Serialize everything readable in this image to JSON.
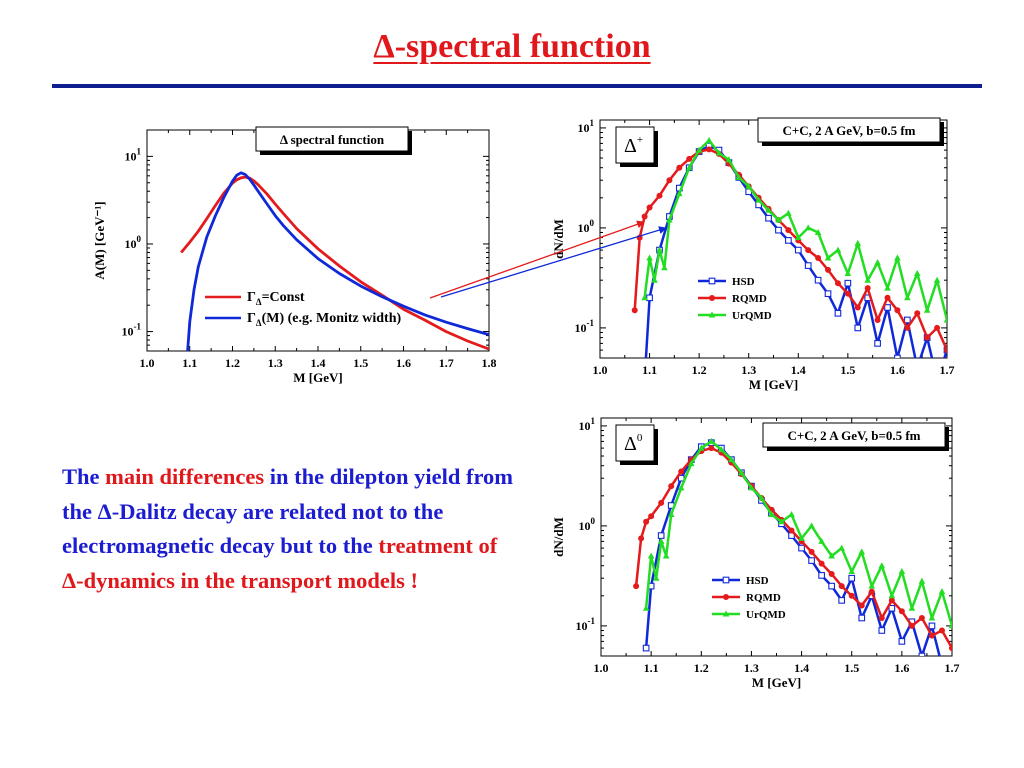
{
  "slide": {
    "title": "Δ-spectral function"
  },
  "text": {
    "p1": "The ",
    "p2": "main differences",
    "p3": " in the dilepton yield from  the Δ-Dalitz decay are related not to the electromagnetic decay but to the ",
    "p4": "treatment of Δ-dynamics in the transport models !"
  },
  "colors": {
    "title": "#e0171b",
    "rule": "#0f1f8f",
    "body": "#1c1cd0",
    "highlight": "#e0171b",
    "hsd": "#1029d8",
    "rqmd": "#e41a1c",
    "urqmd": "#22dd22"
  },
  "chart_data": [
    {
      "type": "line",
      "title": "Δ spectral function",
      "xlabel": "M [GeV]",
      "ylabel": "A(M) [GeV⁻¹]",
      "xlim": [
        1.0,
        1.8
      ],
      "ylim": [
        0.06,
        20
      ],
      "yscale": "log",
      "xticks": [
        "1.0",
        "1.1",
        "1.2",
        "1.3",
        "1.4",
        "1.5",
        "1.6",
        "1.7",
        "1.8"
      ],
      "yticks": [
        {
          "base": "10",
          "exp": "1",
          "value": 10
        },
        {
          "base": "10",
          "exp": "0",
          "value": 1
        },
        {
          "base": "10",
          "exp": "-1",
          "value": 0.1
        }
      ],
      "legend_position": "bottom-center",
      "series": [
        {
          "name": "Γ_Δ=Const",
          "label_main": "Γ",
          "label_sub": "Δ",
          "label_rest": "=Const",
          "color": "red",
          "x": [
            1.08,
            1.1,
            1.12,
            1.14,
            1.16,
            1.18,
            1.2,
            1.21,
            1.22,
            1.23,
            1.24,
            1.25,
            1.26,
            1.28,
            1.3,
            1.32,
            1.35,
            1.4,
            1.45,
            1.5,
            1.55,
            1.6,
            1.65,
            1.7,
            1.75,
            1.8
          ],
          "y": [
            0.8,
            1.05,
            1.4,
            1.95,
            2.75,
            3.8,
            4.95,
            5.4,
            5.7,
            5.8,
            5.65,
            5.25,
            4.75,
            3.75,
            2.85,
            2.2,
            1.5,
            0.88,
            0.56,
            0.37,
            0.26,
            0.18,
            0.135,
            0.1,
            0.078,
            0.063
          ]
        },
        {
          "name": "Γ_Δ(M) (e.g. Monitz width)",
          "label_main": "Γ",
          "label_sub": "Δ",
          "label_rest": "(M) (e.g. Monitz width)",
          "color": "blue",
          "x": [
            1.088,
            1.095,
            1.1,
            1.11,
            1.12,
            1.14,
            1.16,
            1.18,
            1.2,
            1.21,
            1.22,
            1.23,
            1.24,
            1.25,
            1.26,
            1.28,
            1.3,
            1.32,
            1.35,
            1.4,
            1.45,
            1.5,
            1.55,
            1.6,
            1.65,
            1.7,
            1.75,
            1.8
          ],
          "y": [
            0.025,
            0.06,
            0.13,
            0.3,
            0.55,
            1.2,
            2.1,
            3.4,
            5.2,
            6.1,
            6.5,
            6.2,
            5.5,
            4.7,
            4.0,
            2.9,
            2.1,
            1.6,
            1.12,
            0.68,
            0.46,
            0.33,
            0.25,
            0.195,
            0.155,
            0.128,
            0.108,
            0.092
          ]
        }
      ]
    },
    {
      "type": "line",
      "title": "C+C, 2 A GeV, b=0.5 fm",
      "panel_label": {
        "base": "Δ",
        "sup": "+"
      },
      "xlabel": "M [GeV]",
      "ylabel": "dN/dM",
      "xlim": [
        1.0,
        1.7
      ],
      "ylim": [
        0.05,
        12
      ],
      "yscale": "log",
      "xticks": [
        "1.0",
        "1.1",
        "1.2",
        "1.3",
        "1.4",
        "1.5",
        "1.6",
        "1.7"
      ],
      "yticks": [
        {
          "base": "10",
          "exp": "1",
          "value": 10
        },
        {
          "base": "10",
          "exp": "0",
          "value": 1
        },
        {
          "base": "10",
          "exp": "-1",
          "value": 0.1
        }
      ],
      "legend_position": "center",
      "series": [
        {
          "name": "HSD",
          "color": "blue",
          "marker": "square",
          "x": [
            1.09,
            1.1,
            1.12,
            1.14,
            1.16,
            1.18,
            1.2,
            1.22,
            1.24,
            1.26,
            1.28,
            1.3,
            1.32,
            1.34,
            1.36,
            1.38,
            1.4,
            1.42,
            1.44,
            1.46,
            1.48,
            1.5,
            1.52,
            1.54,
            1.56,
            1.58,
            1.6,
            1.62,
            1.64,
            1.66,
            1.68,
            1.7
          ],
          "y": [
            0.03,
            0.2,
            0.6,
            1.3,
            2.5,
            4.0,
            5.8,
            6.6,
            6.0,
            4.5,
            3.2,
            2.3,
            1.7,
            1.25,
            0.95,
            0.75,
            0.6,
            0.42,
            0.3,
            0.22,
            0.14,
            0.28,
            0.1,
            0.2,
            0.07,
            0.16,
            0.05,
            0.12,
            0.04,
            0.08,
            0.03,
            0.06
          ]
        },
        {
          "name": "RQMD",
          "color": "red",
          "marker": "circle",
          "x": [
            1.07,
            1.08,
            1.09,
            1.1,
            1.12,
            1.14,
            1.16,
            1.18,
            1.2,
            1.22,
            1.24,
            1.26,
            1.28,
            1.3,
            1.32,
            1.34,
            1.36,
            1.38,
            1.4,
            1.42,
            1.44,
            1.46,
            1.48,
            1.5,
            1.52,
            1.54,
            1.56,
            1.58,
            1.6,
            1.62,
            1.64,
            1.66,
            1.68,
            1.7
          ],
          "y": [
            0.15,
            0.8,
            1.3,
            1.6,
            2.1,
            3.0,
            4.0,
            4.9,
            5.8,
            6.1,
            5.5,
            4.4,
            3.4,
            2.6,
            2.0,
            1.55,
            1.2,
            0.95,
            0.75,
            0.6,
            0.5,
            0.38,
            0.28,
            0.22,
            0.16,
            0.25,
            0.12,
            0.2,
            0.15,
            0.1,
            0.14,
            0.08,
            0.1,
            0.06
          ]
        },
        {
          "name": "UrQMD",
          "color": "green",
          "marker": "triangle",
          "x": [
            1.09,
            1.1,
            1.11,
            1.12,
            1.13,
            1.14,
            1.16,
            1.18,
            1.2,
            1.22,
            1.24,
            1.26,
            1.28,
            1.3,
            1.32,
            1.34,
            1.36,
            1.38,
            1.4,
            1.42,
            1.44,
            1.46,
            1.48,
            1.5,
            1.52,
            1.54,
            1.56,
            1.58,
            1.6,
            1.62,
            1.64,
            1.66,
            1.68,
            1.7
          ],
          "y": [
            0.2,
            0.5,
            0.3,
            0.6,
            0.4,
            1.2,
            2.2,
            4.0,
            6.0,
            7.5,
            5.6,
            4.8,
            3.2,
            2.6,
            1.9,
            1.5,
            1.2,
            1.4,
            0.8,
            1.0,
            0.9,
            0.5,
            0.6,
            0.35,
            0.7,
            0.3,
            0.45,
            0.25,
            0.5,
            0.2,
            0.35,
            0.15,
            0.3,
            0.12
          ]
        }
      ]
    },
    {
      "type": "line",
      "title": "C+C, 2 A GeV, b=0.5 fm",
      "panel_label": {
        "base": "Δ",
        "sup": "0"
      },
      "xlabel": "M [GeV]",
      "ylabel": "dN/dM",
      "xlim": [
        1.0,
        1.7
      ],
      "ylim": [
        0.05,
        12
      ],
      "yscale": "log",
      "xticks": [
        "1.0",
        "1.1",
        "1.2",
        "1.3",
        "1.4",
        "1.5",
        "1.6",
        "1.7"
      ],
      "yticks": [
        {
          "base": "10",
          "exp": "1",
          "value": 10
        },
        {
          "base": "10",
          "exp": "0",
          "value": 1
        },
        {
          "base": "10",
          "exp": "-1",
          "value": 0.1
        }
      ],
      "legend_position": "center",
      "series": [
        {
          "name": "HSD",
          "color": "blue",
          "marker": "square",
          "x": [
            1.09,
            1.1,
            1.12,
            1.14,
            1.16,
            1.18,
            1.2,
            1.22,
            1.24,
            1.26,
            1.28,
            1.3,
            1.32,
            1.34,
            1.36,
            1.38,
            1.4,
            1.42,
            1.44,
            1.46,
            1.48,
            1.5,
            1.52,
            1.54,
            1.56,
            1.58,
            1.6,
            1.62,
            1.64,
            1.66,
            1.68
          ],
          "y": [
            0.06,
            0.25,
            0.8,
            1.6,
            3.0,
            4.6,
            6.2,
            6.8,
            6.0,
            4.6,
            3.4,
            2.5,
            1.8,
            1.35,
            1.05,
            0.8,
            0.6,
            0.45,
            0.32,
            0.25,
            0.18,
            0.3,
            0.12,
            0.2,
            0.09,
            0.15,
            0.07,
            0.11,
            0.05,
            0.1,
            0.04
          ]
        },
        {
          "name": "RQMD",
          "color": "red",
          "marker": "circle",
          "x": [
            1.07,
            1.08,
            1.09,
            1.1,
            1.12,
            1.14,
            1.16,
            1.18,
            1.2,
            1.22,
            1.24,
            1.26,
            1.28,
            1.3,
            1.32,
            1.34,
            1.36,
            1.38,
            1.4,
            1.42,
            1.44,
            1.46,
            1.48,
            1.5,
            1.52,
            1.54,
            1.56,
            1.58,
            1.6,
            1.62,
            1.64,
            1.66,
            1.68,
            1.7
          ],
          "y": [
            0.25,
            0.75,
            1.1,
            1.25,
            1.7,
            2.5,
            3.5,
            4.6,
            5.6,
            6.0,
            5.4,
            4.3,
            3.3,
            2.5,
            1.9,
            1.45,
            1.15,
            0.9,
            0.7,
            0.55,
            0.42,
            0.33,
            0.25,
            0.2,
            0.16,
            0.22,
            0.12,
            0.18,
            0.14,
            0.1,
            0.12,
            0.08,
            0.09,
            0.06
          ]
        },
        {
          "name": "UrQMD",
          "color": "green",
          "marker": "triangle",
          "x": [
            1.09,
            1.1,
            1.11,
            1.12,
            1.13,
            1.14,
            1.16,
            1.18,
            1.2,
            1.22,
            1.24,
            1.26,
            1.28,
            1.3,
            1.32,
            1.34,
            1.36,
            1.38,
            1.4,
            1.42,
            1.44,
            1.46,
            1.48,
            1.5,
            1.52,
            1.54,
            1.56,
            1.58,
            1.6,
            1.62,
            1.64,
            1.66,
            1.68,
            1.7
          ],
          "y": [
            0.15,
            0.5,
            0.3,
            0.7,
            0.5,
            1.3,
            2.4,
            4.2,
            6.0,
            7.0,
            5.8,
            4.6,
            3.4,
            2.4,
            1.9,
            1.3,
            1.1,
            1.3,
            0.75,
            1.0,
            0.7,
            0.5,
            0.6,
            0.35,
            0.55,
            0.25,
            0.4,
            0.2,
            0.35,
            0.15,
            0.28,
            0.12,
            0.22,
            0.1
          ]
        }
      ]
    }
  ]
}
